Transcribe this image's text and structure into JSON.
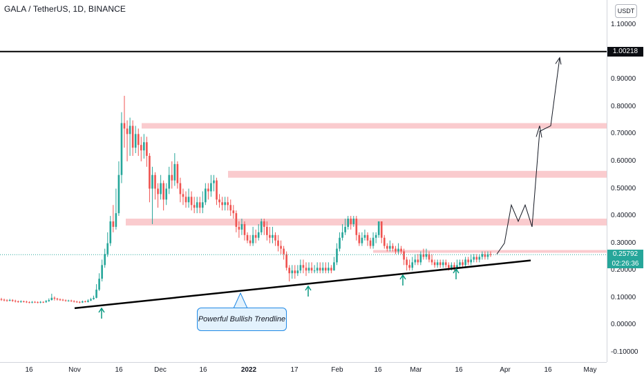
{
  "header": {
    "title": "GALA / TetherUS, 1D, BINANCE"
  },
  "currency_label": "USDT",
  "price_tags": {
    "target_level": "1.00218",
    "last_price": "0.25792",
    "countdown": "02:26:36"
  },
  "callout": {
    "text": "Powerful Bullish Trendline"
  },
  "chart_data": {
    "type": "candlestick",
    "y_axis": {
      "range": [
        -0.13,
        1.18
      ],
      "ticks": [
        "1.10000",
        "0.90000",
        "0.80000",
        "0.70000",
        "0.60000",
        "0.50000",
        "0.40000",
        "0.30000",
        "0.20000",
        "0.10000",
        "0.00000",
        "-0.10000"
      ]
    },
    "x_axis": {
      "ticks": [
        "16",
        "Nov",
        "16",
        "Dec",
        "16",
        "2022",
        "17",
        "Feb",
        "16",
        "Mar",
        "16",
        "Apr",
        "16",
        "May"
      ],
      "bold_ticks": [
        "2022"
      ]
    },
    "candles": [
      [
        0.095,
        0.093,
        0.1,
        0.089
      ],
      [
        0.093,
        0.091,
        0.097,
        0.087
      ],
      [
        0.091,
        0.09,
        0.095,
        0.086
      ],
      [
        0.09,
        0.092,
        0.096,
        0.087
      ],
      [
        0.092,
        0.089,
        0.095,
        0.085
      ],
      [
        0.089,
        0.087,
        0.093,
        0.083
      ],
      [
        0.087,
        0.085,
        0.09,
        0.082
      ],
      [
        0.085,
        0.087,
        0.091,
        0.082
      ],
      [
        0.087,
        0.086,
        0.09,
        0.083
      ],
      [
        0.086,
        0.084,
        0.089,
        0.081
      ],
      [
        0.084,
        0.083,
        0.087,
        0.08
      ],
      [
        0.083,
        0.085,
        0.088,
        0.08
      ],
      [
        0.085,
        0.084,
        0.088,
        0.081
      ],
      [
        0.084,
        0.083,
        0.087,
        0.08
      ],
      [
        0.083,
        0.085,
        0.088,
        0.08
      ],
      [
        0.085,
        0.084,
        0.087,
        0.081
      ],
      [
        0.084,
        0.088,
        0.092,
        0.082
      ],
      [
        0.088,
        0.092,
        0.098,
        0.085
      ],
      [
        0.092,
        0.1,
        0.115,
        0.09
      ],
      [
        0.1,
        0.097,
        0.105,
        0.09
      ],
      [
        0.097,
        0.094,
        0.1,
        0.09
      ],
      [
        0.094,
        0.093,
        0.098,
        0.089
      ],
      [
        0.093,
        0.091,
        0.096,
        0.088
      ],
      [
        0.091,
        0.089,
        0.094,
        0.086
      ],
      [
        0.089,
        0.09,
        0.093,
        0.086
      ],
      [
        0.09,
        0.088,
        0.093,
        0.085
      ],
      [
        0.088,
        0.086,
        0.091,
        0.083
      ],
      [
        0.086,
        0.085,
        0.089,
        0.082
      ],
      [
        0.085,
        0.083,
        0.088,
        0.08
      ],
      [
        0.083,
        0.087,
        0.09,
        0.081
      ],
      [
        0.087,
        0.085,
        0.09,
        0.083
      ],
      [
        0.085,
        0.09,
        0.095,
        0.083
      ],
      [
        0.09,
        0.095,
        0.1,
        0.088
      ],
      [
        0.095,
        0.1,
        0.108,
        0.093
      ],
      [
        0.1,
        0.13,
        0.15,
        0.098
      ],
      [
        0.13,
        0.17,
        0.19,
        0.125
      ],
      [
        0.17,
        0.22,
        0.24,
        0.16
      ],
      [
        0.22,
        0.26,
        0.28,
        0.21
      ],
      [
        0.26,
        0.3,
        0.34,
        0.25
      ],
      [
        0.3,
        0.38,
        0.4,
        0.29
      ],
      [
        0.38,
        0.36,
        0.44,
        0.34
      ],
      [
        0.36,
        0.41,
        0.5,
        0.35
      ],
      [
        0.41,
        0.55,
        0.6,
        0.4
      ],
      [
        0.55,
        0.74,
        0.78,
        0.52
      ],
      [
        0.74,
        0.72,
        0.84,
        0.65
      ],
      [
        0.72,
        0.7,
        0.75,
        0.6
      ],
      [
        0.7,
        0.73,
        0.76,
        0.62
      ],
      [
        0.73,
        0.65,
        0.75,
        0.62
      ],
      [
        0.65,
        0.7,
        0.73,
        0.63
      ],
      [
        0.7,
        0.66,
        0.72,
        0.62
      ],
      [
        0.66,
        0.64,
        0.69,
        0.6
      ],
      [
        0.64,
        0.67,
        0.7,
        0.61
      ],
      [
        0.67,
        0.62,
        0.69,
        0.58
      ],
      [
        0.62,
        0.5,
        0.63,
        0.45
      ],
      [
        0.5,
        0.55,
        0.58,
        0.37
      ],
      [
        0.55,
        0.5,
        0.56,
        0.46
      ],
      [
        0.5,
        0.48,
        0.52,
        0.43
      ],
      [
        0.48,
        0.52,
        0.55,
        0.46
      ],
      [
        0.52,
        0.46,
        0.53,
        0.42
      ],
      [
        0.46,
        0.5,
        0.52,
        0.44
      ],
      [
        0.5,
        0.55,
        0.58,
        0.48
      ],
      [
        0.55,
        0.53,
        0.6,
        0.5
      ],
      [
        0.53,
        0.59,
        0.63,
        0.51
      ],
      [
        0.59,
        0.52,
        0.6,
        0.5
      ],
      [
        0.52,
        0.48,
        0.54,
        0.45
      ],
      [
        0.48,
        0.47,
        0.5,
        0.44
      ],
      [
        0.47,
        0.45,
        0.49,
        0.43
      ],
      [
        0.45,
        0.47,
        0.5,
        0.43
      ],
      [
        0.47,
        0.44,
        0.49,
        0.42
      ],
      [
        0.44,
        0.43,
        0.47,
        0.41
      ],
      [
        0.43,
        0.45,
        0.47,
        0.41
      ],
      [
        0.45,
        0.43,
        0.47,
        0.41
      ],
      [
        0.43,
        0.45,
        0.49,
        0.41
      ],
      [
        0.45,
        0.5,
        0.52,
        0.44
      ],
      [
        0.5,
        0.49,
        0.52,
        0.46
      ],
      [
        0.49,
        0.52,
        0.55,
        0.47
      ],
      [
        0.52,
        0.53,
        0.55,
        0.49
      ],
      [
        0.53,
        0.46,
        0.54,
        0.44
      ],
      [
        0.46,
        0.45,
        0.48,
        0.43
      ],
      [
        0.45,
        0.44,
        0.47,
        0.42
      ],
      [
        0.44,
        0.45,
        0.47,
        0.42
      ],
      [
        0.45,
        0.44,
        0.47,
        0.42
      ],
      [
        0.44,
        0.42,
        0.46,
        0.4
      ],
      [
        0.42,
        0.41,
        0.44,
        0.39
      ],
      [
        0.41,
        0.36,
        0.42,
        0.34
      ],
      [
        0.36,
        0.35,
        0.38,
        0.32
      ],
      [
        0.35,
        0.37,
        0.39,
        0.33
      ],
      [
        0.37,
        0.33,
        0.38,
        0.31
      ],
      [
        0.33,
        0.31,
        0.34,
        0.3
      ],
      [
        0.31,
        0.3,
        0.33,
        0.29
      ],
      [
        0.3,
        0.33,
        0.36,
        0.29
      ],
      [
        0.33,
        0.32,
        0.35,
        0.3
      ],
      [
        0.32,
        0.34,
        0.37,
        0.31
      ],
      [
        0.34,
        0.38,
        0.39,
        0.33
      ],
      [
        0.38,
        0.36,
        0.39,
        0.33
      ],
      [
        0.36,
        0.33,
        0.38,
        0.31
      ],
      [
        0.33,
        0.32,
        0.36,
        0.3
      ],
      [
        0.32,
        0.33,
        0.36,
        0.3
      ],
      [
        0.33,
        0.31,
        0.34,
        0.29
      ],
      [
        0.31,
        0.29,
        0.33,
        0.27
      ],
      [
        0.29,
        0.28,
        0.31,
        0.26
      ],
      [
        0.28,
        0.26,
        0.29,
        0.24
      ],
      [
        0.26,
        0.21,
        0.27,
        0.2
      ],
      [
        0.21,
        0.19,
        0.22,
        0.16
      ],
      [
        0.19,
        0.2,
        0.22,
        0.17
      ],
      [
        0.2,
        0.19,
        0.22,
        0.17
      ],
      [
        0.19,
        0.2,
        0.22,
        0.18
      ],
      [
        0.2,
        0.22,
        0.24,
        0.19
      ],
      [
        0.22,
        0.21,
        0.24,
        0.19
      ],
      [
        0.21,
        0.2,
        0.23,
        0.18
      ],
      [
        0.2,
        0.21,
        0.23,
        0.19
      ],
      [
        0.21,
        0.2,
        0.23,
        0.19
      ],
      [
        0.2,
        0.2,
        0.22,
        0.19
      ],
      [
        0.2,
        0.21,
        0.23,
        0.19
      ],
      [
        0.21,
        0.2,
        0.23,
        0.19
      ],
      [
        0.2,
        0.21,
        0.23,
        0.19
      ],
      [
        0.21,
        0.2,
        0.23,
        0.19
      ],
      [
        0.2,
        0.21,
        0.23,
        0.19
      ],
      [
        0.21,
        0.2,
        0.22,
        0.19
      ],
      [
        0.2,
        0.23,
        0.25,
        0.2
      ],
      [
        0.23,
        0.28,
        0.3,
        0.22
      ],
      [
        0.28,
        0.32,
        0.34,
        0.27
      ],
      [
        0.32,
        0.34,
        0.37,
        0.31
      ],
      [
        0.34,
        0.36,
        0.39,
        0.33
      ],
      [
        0.36,
        0.39,
        0.4,
        0.35
      ],
      [
        0.39,
        0.37,
        0.4,
        0.35
      ],
      [
        0.37,
        0.39,
        0.4,
        0.36
      ],
      [
        0.39,
        0.33,
        0.4,
        0.31
      ],
      [
        0.33,
        0.3,
        0.34,
        0.29
      ],
      [
        0.3,
        0.32,
        0.34,
        0.29
      ],
      [
        0.32,
        0.33,
        0.35,
        0.31
      ],
      [
        0.33,
        0.31,
        0.34,
        0.29
      ],
      [
        0.31,
        0.29,
        0.32,
        0.28
      ],
      [
        0.29,
        0.32,
        0.34,
        0.28
      ],
      [
        0.32,
        0.33,
        0.34,
        0.3
      ],
      [
        0.33,
        0.38,
        0.38,
        0.32
      ],
      [
        0.38,
        0.32,
        0.38,
        0.3
      ],
      [
        0.32,
        0.29,
        0.33,
        0.28
      ],
      [
        0.29,
        0.28,
        0.3,
        0.27
      ],
      [
        0.28,
        0.29,
        0.31,
        0.27
      ],
      [
        0.29,
        0.28,
        0.3,
        0.27
      ],
      [
        0.28,
        0.27,
        0.29,
        0.26
      ],
      [
        0.27,
        0.28,
        0.3,
        0.26
      ],
      [
        0.28,
        0.27,
        0.29,
        0.26
      ],
      [
        0.27,
        0.24,
        0.28,
        0.22
      ],
      [
        0.24,
        0.22,
        0.25,
        0.2
      ],
      [
        0.22,
        0.21,
        0.24,
        0.2
      ],
      [
        0.21,
        0.23,
        0.25,
        0.2
      ],
      [
        0.23,
        0.24,
        0.26,
        0.22
      ],
      [
        0.24,
        0.23,
        0.26,
        0.22
      ],
      [
        0.23,
        0.26,
        0.27,
        0.22
      ],
      [
        0.26,
        0.25,
        0.28,
        0.24
      ],
      [
        0.25,
        0.26,
        0.28,
        0.24
      ],
      [
        0.26,
        0.24,
        0.27,
        0.23
      ],
      [
        0.24,
        0.23,
        0.26,
        0.22
      ],
      [
        0.23,
        0.22,
        0.24,
        0.21
      ],
      [
        0.22,
        0.23,
        0.24,
        0.21
      ],
      [
        0.23,
        0.22,
        0.24,
        0.21
      ],
      [
        0.22,
        0.23,
        0.24,
        0.21
      ],
      [
        0.23,
        0.22,
        0.24,
        0.21
      ],
      [
        0.22,
        0.21,
        0.23,
        0.2
      ],
      [
        0.21,
        0.22,
        0.23,
        0.2
      ],
      [
        0.22,
        0.21,
        0.23,
        0.2
      ],
      [
        0.21,
        0.22,
        0.24,
        0.2
      ],
      [
        0.22,
        0.23,
        0.24,
        0.21
      ],
      [
        0.23,
        0.22,
        0.24,
        0.21
      ],
      [
        0.22,
        0.24,
        0.25,
        0.21
      ],
      [
        0.24,
        0.23,
        0.25,
        0.22
      ],
      [
        0.23,
        0.24,
        0.26,
        0.22
      ],
      [
        0.24,
        0.25,
        0.26,
        0.23
      ],
      [
        0.25,
        0.24,
        0.26,
        0.23
      ],
      [
        0.24,
        0.25,
        0.26,
        0.23
      ],
      [
        0.25,
        0.26,
        0.27,
        0.24
      ],
      [
        0.26,
        0.25,
        0.27,
        0.24
      ],
      [
        0.25,
        0.26,
        0.27,
        0.24
      ],
      [
        0.26,
        0.258,
        0.27,
        0.25
      ]
    ],
    "trendline": {
      "from": [
        0.077,
        "start"
      ],
      "to": [
        0.24,
        "end"
      ]
    },
    "resistance_zones": [
      [
        0.72,
        0.74
      ],
      [
        0.54,
        0.565
      ],
      [
        0.365,
        0.39
      ],
      [
        0.265,
        0.275
      ]
    ],
    "horizontal_line": 1.00218,
    "projection": [
      [
        0.26,
        0
      ],
      [
        0.3,
        1
      ],
      [
        0.44,
        2
      ],
      [
        0.38,
        3
      ],
      [
        0.44,
        4
      ],
      [
        0.36,
        5
      ],
      [
        0.71,
        6
      ],
      [
        0.73,
        7
      ],
      [
        0.98,
        8
      ]
    ]
  }
}
